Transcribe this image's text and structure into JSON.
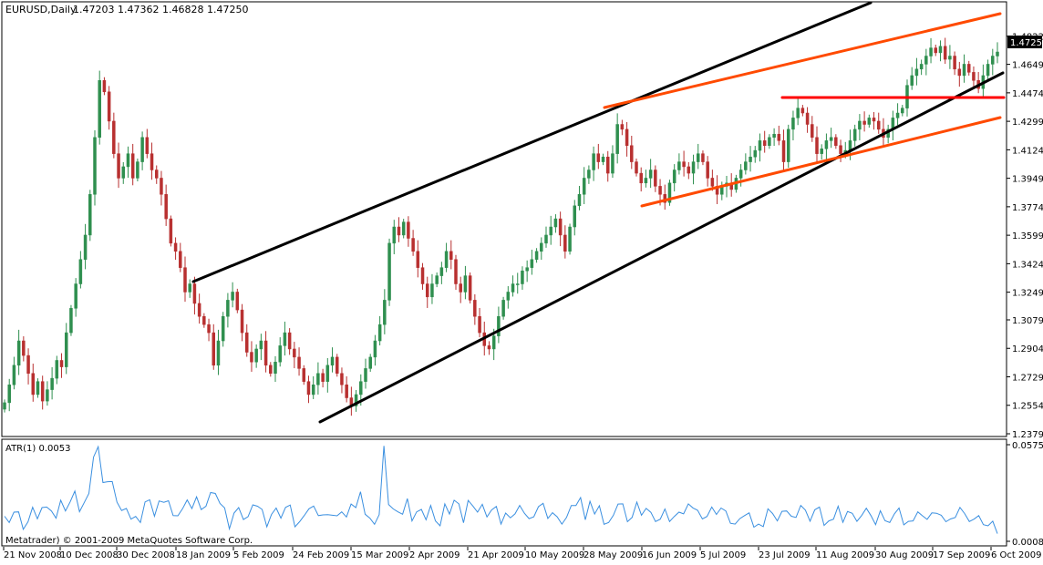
{
  "chart_data": [
    {
      "type": "candlestick",
      "title": "EURUSD,Daily",
      "ohlc_readout": "1.47203 1.47362 1.46828 1.47250",
      "current_price": "1.47250",
      "ylim": [
        1.2379,
        1.4882
      ],
      "y_ticks": [
        "1.48220",
        "1.46490",
        "1.44740",
        "1.42990",
        "1.41240",
        "1.39490",
        "1.37740",
        "1.35990",
        "1.34240",
        "1.32490",
        "1.30790",
        "1.29040",
        "1.27290",
        "1.25540",
        "1.23790"
      ],
      "x_ticks": [
        "21 Nov 2008",
        "10 Dec 2008",
        "30 Dec 2008",
        "18 Jan 2009",
        "5 Feb 2009",
        "24 Feb 2009",
        "15 Mar 2009",
        "2 Apr 2009",
        "21 Apr 2009",
        "10 May 2009",
        "28 May 2009",
        "16 Jun 2009",
        "5 Jul 2009",
        "23 Jul 2009",
        "11 Aug 2009",
        "30 Aug 2009",
        "17 Sep 2009",
        "6 Oct 2009"
      ],
      "bull_color": "#2f8f4f",
      "bear_color": "#b83030",
      "closes": [
        1.257,
        1.268,
        1.28,
        1.295,
        1.286,
        1.275,
        1.262,
        1.27,
        1.258,
        1.265,
        1.272,
        1.283,
        1.279,
        1.3,
        1.315,
        1.33,
        1.345,
        1.36,
        1.385,
        1.42,
        1.455,
        1.448,
        1.43,
        1.41,
        1.395,
        1.402,
        1.41,
        1.395,
        1.405,
        1.42,
        1.41,
        1.4,
        1.395,
        1.385,
        1.37,
        1.355,
        1.35,
        1.34,
        1.325,
        1.33,
        1.318,
        1.31,
        1.305,
        1.3,
        1.28,
        1.295,
        1.31,
        1.32,
        1.325,
        1.314,
        1.3,
        1.288,
        1.282,
        1.29,
        1.295,
        1.28,
        1.275,
        1.282,
        1.292,
        1.3,
        1.29,
        1.285,
        1.278,
        1.27,
        1.262,
        1.268,
        1.275,
        1.27,
        1.28,
        1.285,
        1.275,
        1.268,
        1.26,
        1.255,
        1.262,
        1.27,
        1.278,
        1.285,
        1.295,
        1.305,
        1.32,
        1.355,
        1.365,
        1.36,
        1.368,
        1.358,
        1.35,
        1.34,
        1.33,
        1.322,
        1.33,
        1.335,
        1.34,
        1.35,
        1.345,
        1.33,
        1.325,
        1.335,
        1.32,
        1.31,
        1.3,
        1.292,
        1.29,
        1.298,
        1.31,
        1.32,
        1.325,
        1.33,
        1.33,
        1.338,
        1.34,
        1.345,
        1.35,
        1.355,
        1.36,
        1.365,
        1.37,
        1.36,
        1.35,
        1.365,
        1.378,
        1.385,
        1.395,
        1.4,
        1.41,
        1.405,
        1.408,
        1.398,
        1.41,
        1.428,
        1.425,
        1.415,
        1.405,
        1.398,
        1.392,
        1.395,
        1.4,
        1.39,
        1.385,
        1.38,
        1.392,
        1.4,
        1.405,
        1.402,
        1.398,
        1.405,
        1.41,
        1.405,
        1.395,
        1.39,
        1.385,
        1.39,
        1.392,
        1.388,
        1.395,
        1.4,
        1.405,
        1.408,
        1.412,
        1.418,
        1.415,
        1.42,
        1.422,
        1.418,
        1.405,
        1.425,
        1.432,
        1.438,
        1.435,
        1.428,
        1.42,
        1.41,
        1.413,
        1.418,
        1.42,
        1.415,
        1.41,
        1.412,
        1.418,
        1.425,
        1.43,
        1.428,
        1.432,
        1.43,
        1.425,
        1.42,
        1.425,
        1.432,
        1.435,
        1.438,
        1.452,
        1.458,
        1.462,
        1.465,
        1.47,
        1.475,
        1.472,
        1.476,
        1.468,
        1.47,
        1.462,
        1.458,
        1.465,
        1.46,
        1.455,
        1.45,
        1.458,
        1.465,
        1.47,
        1.4725
      ],
      "trendlines": [
        {
          "name": "upper-channel-line",
          "color": "#000000"
        },
        {
          "name": "lower-channel-line",
          "color": "#000000"
        },
        {
          "name": "orange-upper-line",
          "color": "#ff4a00"
        },
        {
          "name": "orange-lower-line",
          "color": "#ff4a00"
        },
        {
          "name": "resistance-line",
          "color": "#ff0000"
        }
      ]
    },
    {
      "type": "line",
      "title": "ATR(1) 0.0053",
      "ylim": [
        0.0008,
        0.0575
      ],
      "y_ticks": [
        "0.0575",
        "0.0008"
      ],
      "series": [
        {
          "color": "#3a8fe0",
          "values": [
            0.0155,
            0.0118,
            0.0179,
            0.0181,
            0.0078,
            0.0122,
            0.0208,
            0.014,
            0.0206,
            0.0209,
            0.0186,
            0.0144,
            0.0249,
            0.0186,
            0.0239,
            0.0303,
            0.0182,
            0.0234,
            0.0289,
            0.0502,
            0.0563,
            0.0353,
            0.0358,
            0.0359,
            0.0238,
            0.0189,
            0.0201,
            0.0138,
            0.0154,
            0.0118,
            0.0239,
            0.0252,
            0.0155,
            0.0245,
            0.0237,
            0.0246,
            0.0159,
            0.0158,
            0.0199,
            0.0251,
            0.02,
            0.0269,
            0.0194,
            0.0214,
            0.0294,
            0.0289,
            0.023,
            0.0204,
            0.0081,
            0.0174,
            0.0206,
            0.0136,
            0.0153,
            0.0222,
            0.0214,
            0.0195,
            0.0093,
            0.0166,
            0.0203,
            0.0144,
            0.0207,
            0.0221,
            0.0093,
            0.0123,
            0.016,
            0.0199,
            0.0215,
            0.0159,
            0.0163,
            0.0164,
            0.0161,
            0.0158,
            0.0181,
            0.0151,
            0.0227,
            0.0206,
            0.0299,
            0.0167,
            0.0144,
            0.0108,
            0.0164,
            0.0568,
            0.0224,
            0.0198,
            0.0181,
            0.0167,
            0.0259,
            0.0128,
            0.0181,
            0.0195,
            0.0134,
            0.0218,
            0.0128,
            0.0099,
            0.0228,
            0.0168,
            0.0249,
            0.0228,
            0.0117,
            0.0248,
            0.0215,
            0.0179,
            0.0225,
            0.0151,
            0.0192,
            0.0213,
            0.0109,
            0.0174,
            0.0146,
            0.0169,
            0.0219,
            0.0173,
            0.0141,
            0.0152,
            0.0211,
            0.0231,
            0.0142,
            0.0176,
            0.0152,
            0.0109,
            0.0148,
            0.0218,
            0.0218,
            0.0265,
            0.0134,
            0.0243,
            0.0168,
            0.0217,
            0.0108,
            0.0118,
            0.0161,
            0.0227,
            0.0228,
            0.0123,
            0.0148,
            0.0238,
            0.0161,
            0.0201,
            0.0178,
            0.0124,
            0.0138,
            0.0198,
            0.0124,
            0.0154,
            0.0179,
            0.0169,
            0.0228,
            0.0204,
            0.019,
            0.0139,
            0.0154,
            0.0209,
            0.0166,
            0.0203,
            0.0186,
            0.0114,
            0.0109,
            0.0141,
            0.0159,
            0.0175,
            0.0091,
            0.0109,
            0.0094,
            0.0199,
            0.0171,
            0.0128,
            0.0184,
            0.0186,
            0.0155,
            0.0148,
            0.0219,
            0.0191,
            0.0126,
            0.0193,
            0.0209,
            0.0101,
            0.0128,
            0.0138,
            0.0214,
            0.0119,
            0.0183,
            0.0172,
            0.0125,
            0.0159,
            0.0202,
            0.0159,
            0.0106,
            0.0187,
            0.0129,
            0.0118,
            0.0169,
            0.0204,
            0.0105,
            0.0125,
            0.0128,
            0.0181,
            0.0158,
            0.0137,
            0.0175,
            0.0173,
            0.0161,
            0.0123,
            0.0139,
            0.0148,
            0.0207,
            0.0171,
            0.0124,
            0.0138,
            0.0159,
            0.0106,
            0.0099,
            0.0126,
            0.0053
          ]
        }
      ]
    }
  ],
  "footer": {
    "copyright": "Metatrader) © 2001-2009 MetaQuotes Software Corp."
  }
}
